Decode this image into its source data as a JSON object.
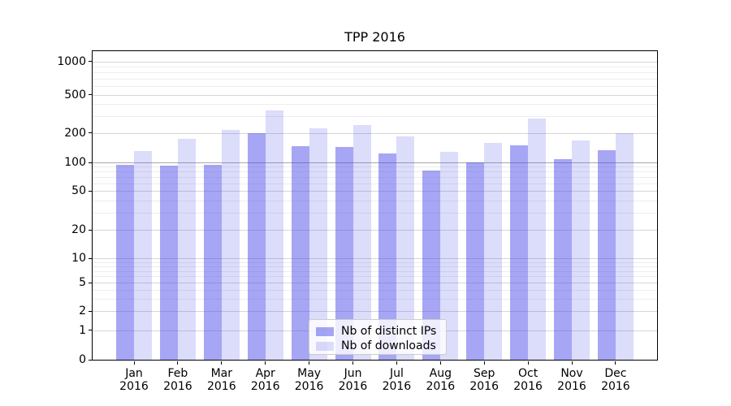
{
  "title": "TPP 2016",
  "y_axis": {
    "ticks": [
      0,
      1,
      2,
      5,
      10,
      20,
      50,
      100,
      200,
      500,
      1000
    ],
    "emphasized_tick": 100,
    "scale": "symlog"
  },
  "x_axis": {
    "months": [
      "Jan",
      "Feb",
      "Mar",
      "Apr",
      "May",
      "Jun",
      "Jul",
      "Aug",
      "Sep",
      "Oct",
      "Nov",
      "Dec"
    ],
    "year": "2016"
  },
  "legend": {
    "items": [
      {
        "label": "Nb of distinct IPs",
        "color": "rgba(70,70,235,0.48)"
      },
      {
        "label": "Nb of downloads",
        "color": "rgba(70,70,235,0.19)"
      }
    ]
  },
  "colors": {
    "bar_ips": "rgba(70,70,235,0.48)",
    "bar_downloads": "rgba(70,70,235,0.19)",
    "grid_major": "#d6d6d6",
    "grid_minor": "#ededed",
    "grid_emphasis": "#a8a8a8",
    "spine": "#000000"
  },
  "chart_data": {
    "type": "bar",
    "title": "TPP 2016",
    "categories": [
      "Jan 2016",
      "Feb 2016",
      "Mar 2016",
      "Apr 2016",
      "May 2016",
      "Jun 2016",
      "Jul 2016",
      "Aug 2016",
      "Sep 2016",
      "Oct 2016",
      "Nov 2016",
      "Dec 2016"
    ],
    "series": [
      {
        "name": "Nb of distinct IPs",
        "values": [
          94,
          93,
          95,
          200,
          146,
          143,
          123,
          82,
          100,
          149,
          108,
          133
        ]
      },
      {
        "name": "Nb of downloads",
        "values": [
          131,
          173,
          213,
          342,
          223,
          241,
          183,
          127,
          157,
          284,
          166,
          200
        ]
      }
    ],
    "xlabel": "",
    "ylabel": "",
    "yscale": "symlog",
    "yticks": [
      0,
      1,
      2,
      5,
      10,
      20,
      50,
      100,
      200,
      500,
      1000
    ],
    "ylim": [
      0,
      1300
    ],
    "grid": "both",
    "legend_position": "lower center"
  }
}
